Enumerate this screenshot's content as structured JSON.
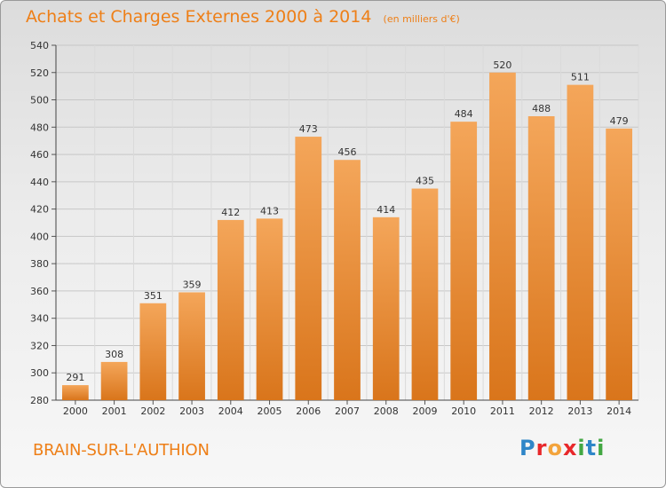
{
  "header": {
    "title": "Achats et Charges Externes 2000 à 2014",
    "unit": "(en milliers d'€)"
  },
  "footer": {
    "commune": "BRAIN-SUR-L'AUTHION",
    "logo_letters": [
      "P",
      "r",
      "o",
      "x",
      "i",
      "t",
      "i"
    ],
    "logo_colors": [
      "#2f86c8",
      "#e8282b",
      "#f3a43c",
      "#e8282b",
      "#43a843",
      "#2f86c8",
      "#43a843"
    ]
  },
  "colors": {
    "accent": "#ee7f17",
    "bar_light": "#f4a65a",
    "bar_dark": "#d9751b"
  },
  "chart_data": {
    "type": "bar",
    "title": "Achats et Charges Externes 2000 à 2014",
    "categories": [
      "2000",
      "2001",
      "2002",
      "2003",
      "2004",
      "2005",
      "2006",
      "2007",
      "2008",
      "2009",
      "2010",
      "2011",
      "2012",
      "2013",
      "2014"
    ],
    "values": [
      291,
      308,
      351,
      359,
      412,
      413,
      473,
      456,
      414,
      435,
      484,
      520,
      488,
      511,
      479
    ],
    "ylim": [
      280,
      540
    ],
    "yticks": [
      280,
      300,
      320,
      340,
      360,
      380,
      400,
      420,
      440,
      460,
      480,
      500,
      520,
      540
    ],
    "grid": true,
    "xlabel": "",
    "ylabel": ""
  }
}
